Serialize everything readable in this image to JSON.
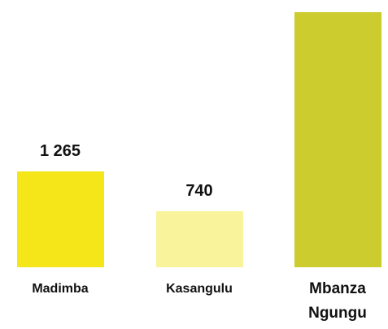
{
  "chart_data": {
    "type": "bar",
    "categories": [
      "Madimba",
      "Kasangulu",
      "Mbanza Ngungu"
    ],
    "values": [
      1265,
      740,
      3370
    ],
    "value_labels": [
      "1 265",
      "740",
      null
    ],
    "colors": [
      "#f5e61a",
      "#f9f39c",
      "#cccc2e"
    ],
    "ylim": [
      0,
      3500
    ]
  }
}
